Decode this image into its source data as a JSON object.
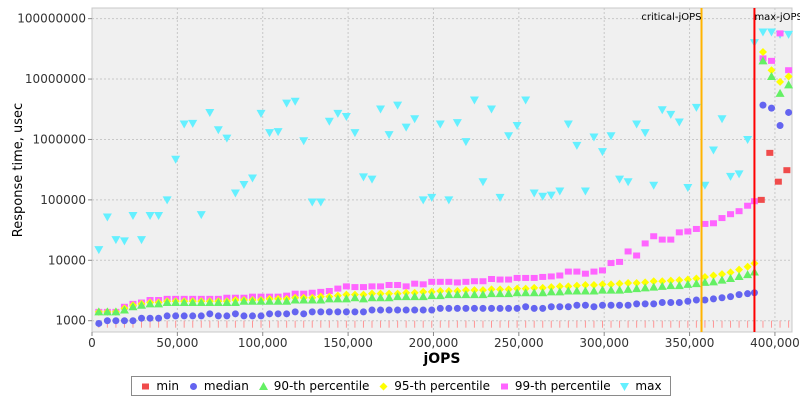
{
  "chart_data": {
    "type": "scatter",
    "title": "",
    "xlabel": "jOPS",
    "ylabel": "Response time, usec",
    "xlim": [
      0,
      410000
    ],
    "ylim": [
      650,
      150000000
    ],
    "yscale": "log",
    "grid": true,
    "legend_position": "bottom",
    "x_ticks": [
      0,
      50000,
      100000,
      150000,
      200000,
      250000,
      300000,
      350000,
      400000
    ],
    "x_tick_labels": [
      "0",
      "50,000",
      "100,000",
      "150,000",
      "200,000",
      "250,000",
      "300,000",
      "350,000",
      "400,000"
    ],
    "y_ticks": [
      1000,
      10000,
      100000,
      1000000,
      10000000,
      100000000
    ],
    "y_tick_labels": [
      "1000",
      "10000",
      "100000",
      "1000000",
      "10000000",
      "100000000"
    ],
    "markers": [
      {
        "name": "critical-jOPS",
        "x": 357000,
        "color": "#ffb400"
      },
      {
        "name": "max-jOPS",
        "x": 388000,
        "color": "#ff0000"
      }
    ],
    "series": [
      {
        "name": "min",
        "color": "#f04b4b",
        "shape": "square",
        "x": [
          392000,
          397000,
          402000,
          407000
        ],
        "y": [
          100000,
          600000,
          200000,
          310000
        ]
      },
      {
        "name": "median",
        "color": "#6464f0",
        "shape": "circle",
        "x": [
          4000,
          9000,
          14000,
          19000,
          24000,
          29000,
          34000,
          39000,
          44000,
          49000,
          54000,
          59000,
          64000,
          69000,
          74000,
          79000,
          84000,
          89000,
          94000,
          99000,
          104000,
          109000,
          114000,
          119000,
          124000,
          129000,
          134000,
          139000,
          144000,
          149000,
          154000,
          159000,
          164000,
          169000,
          174000,
          179000,
          184000,
          189000,
          194000,
          199000,
          204000,
          209000,
          214000,
          219000,
          224000,
          229000,
          234000,
          239000,
          244000,
          249000,
          254000,
          259000,
          264000,
          269000,
          274000,
          279000,
          284000,
          289000,
          294000,
          299000,
          304000,
          309000,
          314000,
          319000,
          324000,
          329000,
          334000,
          339000,
          344000,
          349000,
          354000,
          359000,
          364000,
          369000,
          374000,
          379000,
          384000,
          388000,
          393000,
          398000,
          403000,
          408000
        ],
        "y": [
          900,
          1000,
          1000,
          1000,
          1000,
          1100,
          1100,
          1100,
          1200,
          1200,
          1200,
          1200,
          1200,
          1300,
          1200,
          1200,
          1300,
          1200,
          1200,
          1200,
          1300,
          1300,
          1300,
          1400,
          1300,
          1400,
          1400,
          1400,
          1400,
          1400,
          1400,
          1400,
          1500,
          1500,
          1500,
          1500,
          1500,
          1500,
          1500,
          1500,
          1600,
          1600,
          1600,
          1600,
          1600,
          1600,
          1600,
          1600,
          1600,
          1600,
          1700,
          1600,
          1600,
          1700,
          1700,
          1700,
          1800,
          1800,
          1700,
          1800,
          1800,
          1800,
          1800,
          1900,
          1900,
          1900,
          2000,
          2000,
          2000,
          2100,
          2200,
          2200,
          2300,
          2400,
          2500,
          2700,
          2800,
          2900,
          3700000,
          3300000,
          1700000,
          2800000
        ]
      },
      {
        "name": "90-th percentile",
        "color": "#64f064",
        "shape": "triangle-up",
        "x": [
          4000,
          9000,
          14000,
          19000,
          24000,
          29000,
          34000,
          39000,
          44000,
          49000,
          54000,
          59000,
          64000,
          69000,
          74000,
          79000,
          84000,
          89000,
          94000,
          99000,
          104000,
          109000,
          114000,
          119000,
          124000,
          129000,
          134000,
          139000,
          144000,
          149000,
          154000,
          159000,
          164000,
          169000,
          174000,
          179000,
          184000,
          189000,
          194000,
          199000,
          204000,
          209000,
          214000,
          219000,
          224000,
          229000,
          234000,
          239000,
          244000,
          249000,
          254000,
          259000,
          264000,
          269000,
          274000,
          279000,
          284000,
          289000,
          294000,
          299000,
          304000,
          309000,
          314000,
          319000,
          324000,
          329000,
          334000,
          339000,
          344000,
          349000,
          354000,
          359000,
          364000,
          369000,
          374000,
          379000,
          384000,
          388000,
          393000,
          398000,
          403000,
          408000
        ],
        "y": [
          1400,
          1400,
          1400,
          1500,
          1700,
          1800,
          1900,
          1900,
          2000,
          2000,
          2000,
          2000,
          2000,
          2000,
          2000,
          2000,
          2000,
          2100,
          2100,
          2100,
          2100,
          2100,
          2100,
          2200,
          2200,
          2200,
          2200,
          2300,
          2300,
          2300,
          2400,
          2300,
          2400,
          2400,
          2400,
          2500,
          2500,
          2500,
          2500,
          2600,
          2600,
          2700,
          2700,
          2700,
          2700,
          2700,
          2800,
          2800,
          2800,
          2900,
          2900,
          2900,
          2900,
          3000,
          3000,
          3100,
          3100,
          3100,
          3100,
          3200,
          3200,
          3200,
          3300,
          3400,
          3500,
          3600,
          3700,
          3800,
          3800,
          4000,
          4100,
          4300,
          4400,
          4700,
          5000,
          5400,
          5800,
          6400,
          20000000,
          11000000,
          5800000,
          8000000
        ]
      },
      {
        "name": "95-th percentile",
        "color": "#ffff00",
        "shape": "diamond",
        "x": [
          4000,
          9000,
          14000,
          19000,
          24000,
          29000,
          34000,
          39000,
          44000,
          49000,
          54000,
          59000,
          64000,
          69000,
          74000,
          79000,
          84000,
          89000,
          94000,
          99000,
          104000,
          109000,
          114000,
          119000,
          124000,
          129000,
          134000,
          139000,
          144000,
          149000,
          154000,
          159000,
          164000,
          169000,
          174000,
          179000,
          184000,
          189000,
          194000,
          199000,
          204000,
          209000,
          214000,
          219000,
          224000,
          229000,
          234000,
          239000,
          244000,
          249000,
          254000,
          259000,
          264000,
          269000,
          274000,
          279000,
          284000,
          289000,
          294000,
          299000,
          304000,
          309000,
          314000,
          319000,
          324000,
          329000,
          334000,
          339000,
          344000,
          349000,
          354000,
          359000,
          364000,
          369000,
          374000,
          379000,
          384000,
          388000,
          393000,
          398000,
          403000,
          408000
        ],
        "y": [
          1400,
          1400,
          1400,
          1600,
          1800,
          1900,
          2000,
          2000,
          2100,
          2100,
          2100,
          2100,
          2100,
          2100,
          2100,
          2100,
          2200,
          2200,
          2200,
          2200,
          2300,
          2300,
          2300,
          2400,
          2400,
          2400,
          2500,
          2500,
          2600,
          2700,
          2700,
          2700,
          2800,
          2800,
          2800,
          2800,
          2900,
          2900,
          3000,
          3000,
          3100,
          3100,
          3100,
          3200,
          3200,
          3200,
          3300,
          3300,
          3300,
          3400,
          3400,
          3500,
          3500,
          3600,
          3700,
          3700,
          3800,
          3900,
          3900,
          4000,
          4000,
          4100,
          4200,
          4200,
          4300,
          4500,
          4500,
          4600,
          4700,
          4800,
          5000,
          5300,
          5600,
          5900,
          6300,
          7000,
          7800,
          8900,
          28000000,
          14000000,
          9000000,
          11000000
        ]
      },
      {
        "name": "99-th percentile",
        "color": "#ff64ff",
        "shape": "square",
        "x": [
          4000,
          9000,
          14000,
          19000,
          24000,
          29000,
          34000,
          39000,
          44000,
          49000,
          54000,
          59000,
          64000,
          69000,
          74000,
          79000,
          84000,
          89000,
          94000,
          99000,
          104000,
          109000,
          114000,
          119000,
          124000,
          129000,
          134000,
          139000,
          144000,
          149000,
          154000,
          159000,
          164000,
          169000,
          174000,
          179000,
          184000,
          189000,
          194000,
          199000,
          204000,
          209000,
          214000,
          219000,
          224000,
          229000,
          234000,
          239000,
          244000,
          249000,
          254000,
          259000,
          264000,
          269000,
          274000,
          279000,
          284000,
          289000,
          294000,
          299000,
          304000,
          309000,
          314000,
          319000,
          324000,
          329000,
          334000,
          339000,
          344000,
          349000,
          354000,
          359000,
          364000,
          369000,
          374000,
          379000,
          384000,
          388000,
          393000,
          398000,
          403000,
          408000
        ],
        "y": [
          1400,
          1400,
          1400,
          1700,
          1900,
          2000,
          2200,
          2200,
          2300,
          2300,
          2300,
          2300,
          2300,
          2300,
          2300,
          2400,
          2400,
          2400,
          2500,
          2500,
          2500,
          2500,
          2600,
          2800,
          2800,
          2900,
          3000,
          3100,
          3400,
          3700,
          3600,
          3600,
          3700,
          3700,
          3900,
          3900,
          3700,
          4100,
          4000,
          4400,
          4400,
          4400,
          4300,
          4400,
          4500,
          4500,
          4900,
          4800,
          4800,
          5100,
          5100,
          5100,
          5300,
          5400,
          5600,
          6500,
          6500,
          6000,
          6500,
          6800,
          9000,
          9400,
          14000,
          12000,
          19000,
          25000,
          22000,
          22000,
          29000,
          30000,
          33000,
          40000,
          41000,
          50000,
          58000,
          65000,
          80000,
          95000,
          22000000,
          20000000,
          57000000,
          14000000
        ]
      },
      {
        "name": "max",
        "color": "#64f0ff",
        "shape": "triangle-down",
        "x": [
          4000,
          9000,
          14000,
          19000,
          24000,
          29000,
          34000,
          39000,
          44000,
          49000,
          54000,
          59000,
          64000,
          69000,
          74000,
          79000,
          84000,
          89000,
          94000,
          99000,
          104000,
          109000,
          114000,
          119000,
          124000,
          129000,
          134000,
          139000,
          144000,
          149000,
          154000,
          159000,
          164000,
          169000,
          174000,
          179000,
          184000,
          189000,
          194000,
          199000,
          204000,
          209000,
          214000,
          219000,
          224000,
          229000,
          234000,
          239000,
          244000,
          249000,
          254000,
          259000,
          264000,
          269000,
          274000,
          279000,
          284000,
          289000,
          294000,
          299000,
          304000,
          309000,
          314000,
          319000,
          324000,
          329000,
          334000,
          339000,
          344000,
          349000,
          354000,
          359000,
          364000,
          369000,
          374000,
          379000,
          384000,
          388000,
          393000,
          398000,
          403000,
          408000
        ],
        "y": [
          15000,
          52000,
          22000,
          21000,
          55000,
          22000,
          55000,
          55000,
          100000,
          470000,
          1800000,
          1850000,
          57000,
          2800000,
          1450000,
          1050000,
          130000,
          180000,
          230000,
          2700000,
          1300000,
          1350000,
          4000000,
          4300000,
          950000,
          92000,
          92000,
          2000000,
          2700000,
          2400000,
          1300000,
          240000,
          220000,
          3200000,
          1200000,
          3700000,
          1600000,
          2200000,
          100000,
          110000,
          1800000,
          100000,
          1900000,
          920000,
          4500000,
          200000,
          3200000,
          110000,
          1150000,
          1700000,
          4500000,
          130000,
          115000,
          120000,
          140000,
          1800000,
          800000,
          140000,
          1100000,
          630000,
          1150000,
          220000,
          200000,
          1800000,
          1300000,
          175000,
          3100000,
          2600000,
          1950000,
          160000,
          3400000,
          175000,
          670000,
          2200000,
          245000,
          270000,
          1000000,
          40000000,
          60000000,
          60000000,
          55000000,
          55000000
        ]
      }
    ]
  }
}
